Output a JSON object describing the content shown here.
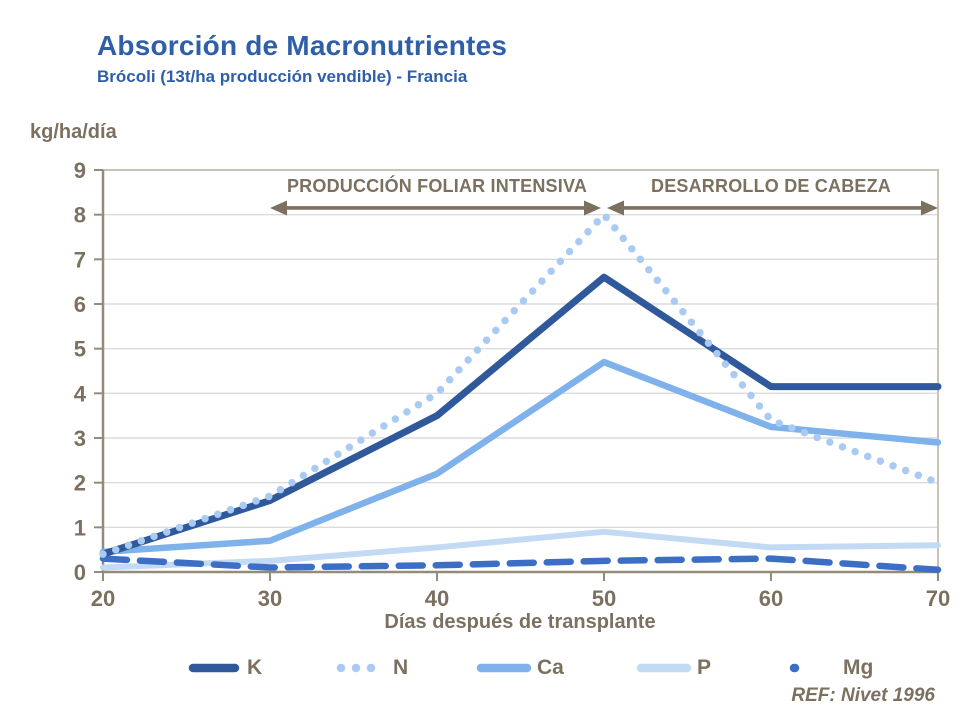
{
  "header": {
    "title": "Absorción de Macronutrientes",
    "subtitle": "Brócoli (13t/ha producción vendible) -  Francia"
  },
  "chart_data": {
    "type": "line",
    "title": "Absorción de Macronutrientes",
    "subtitle": "Brócoli (13t/ha producción vendible) -  Francia",
    "ylabel": "kg/ha/día",
    "xlabel": "Días después de transplante",
    "x": [
      20,
      30,
      40,
      50,
      60,
      70
    ],
    "xlim": [
      20,
      70
    ],
    "ylim": [
      0,
      9
    ],
    "xticks": [
      20,
      30,
      40,
      50,
      60,
      70
    ],
    "yticks": [
      0,
      1,
      2,
      3,
      4,
      5,
      6,
      7,
      8,
      9
    ],
    "grid": "horizontal",
    "legend_position": "bottom",
    "series": [
      {
        "name": "K",
        "style": "solid",
        "color": "#30599B",
        "values": [
          0.4,
          1.6,
          3.5,
          6.6,
          4.15,
          4.15
        ]
      },
      {
        "name": "N",
        "style": "dotted",
        "color": "#A9CBF3",
        "values": [
          0.4,
          1.7,
          4.0,
          8.0,
          3.4,
          2.0
        ]
      },
      {
        "name": "Ca",
        "style": "solid",
        "color": "#7FB1EA",
        "values": [
          0.45,
          0.7,
          2.2,
          4.7,
          3.25,
          2.9
        ]
      },
      {
        "name": "P",
        "style": "solid",
        "color": "#C3DAF4",
        "values": [
          0.1,
          0.25,
          0.55,
          0.9,
          0.55,
          0.6
        ]
      },
      {
        "name": "Mg",
        "style": "dashed",
        "color": "#3D6EC6",
        "values": [
          0.3,
          0.1,
          0.15,
          0.25,
          0.3,
          0.05
        ]
      }
    ],
    "annotations": [
      {
        "label": "PRODUCCIÓN FOLIAR INTENSIVA",
        "x_start": 30,
        "x_end": 50,
        "y": 8.15
      },
      {
        "label": "DESARROLLO DE CABEZA",
        "x_start": 50,
        "x_end": 70,
        "y": 8.15
      }
    ]
  },
  "footer": {
    "ref": "REF: Nivet  1996"
  },
  "colors": {
    "title_blue": "#2E5FA8",
    "text_taupe": "#7C7060",
    "axis_spine": "#958B7B",
    "frame_light": "#C9C3B6",
    "gridline": "#DBDBDB"
  }
}
